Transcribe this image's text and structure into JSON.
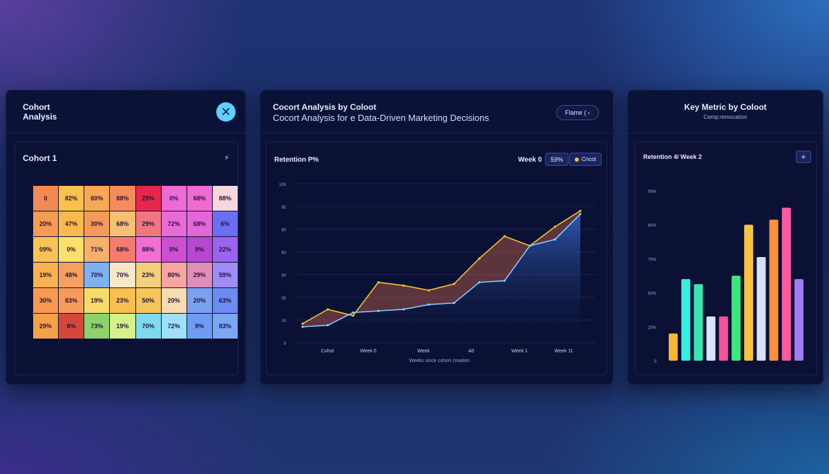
{
  "panel1": {
    "title": "Cohort Analysis",
    "card_title": "Cohort 1",
    "card_icon": "⚡",
    "close_icon": "✕",
    "heatmap": [
      [
        "0",
        "82%",
        "60%",
        "88%",
        "29%",
        "0%",
        "68%",
        "88%"
      ],
      [
        "20%",
        "47%",
        "30%",
        "68%",
        "29%",
        "72%",
        "68%",
        "6%"
      ],
      [
        "09%",
        "0%",
        "71%",
        "68%",
        "88%",
        "0%",
        "9%",
        "22%"
      ],
      [
        "19%",
        "48%",
        "70%",
        "70%",
        "23%",
        "80%",
        "29%",
        "59%"
      ],
      [
        "30%",
        "83%",
        "19%",
        "23%",
        "50%",
        "20%",
        "20%",
        "63%"
      ],
      [
        "29%",
        "8%",
        "73%",
        "19%",
        "70%",
        "72%",
        "9%",
        "83%"
      ]
    ],
    "heatmap_colors": [
      [
        "#f28a55",
        "#f9c04e",
        "#f7a856",
        "#f58c5c",
        "#e8254a",
        "#ee6bd6",
        "#ee6bd0",
        "#f8d6e0"
      ],
      [
        "#f79a52",
        "#f9b94d",
        "#f69a58",
        "#f5c170",
        "#f27680",
        "#e86bd8",
        "#e566d8",
        "#6b6ff0"
      ],
      [
        "#f9c354",
        "#fbe06c",
        "#f6b06a",
        "#f57a70",
        "#f070d2",
        "#cc4fcf",
        "#b548cf",
        "#9b64ee"
      ],
      [
        "#f9b24e",
        "#f59f60",
        "#7db1f0",
        "#f8e8c8",
        "#f5cf7a",
        "#f8a4a0",
        "#e38cb8",
        "#9f8cf5"
      ],
      [
        "#f89a4e",
        "#f79a5e",
        "#f7dc6a",
        "#f9c050",
        "#f3c65e",
        "#f6dcb0",
        "#7aa0f0",
        "#6b8cf0"
      ],
      [
        "#f4a24a",
        "#d4473a",
        "#8cd36a",
        "#d6f08a",
        "#7fdaf0",
        "#9ee0f8",
        "#6f9cf2",
        "#7aa8f2"
      ]
    ]
  },
  "panel2": {
    "title": "Cocort Analysis by Coloot",
    "subtitle": "Cocort Analysis for e Data-Driven Marketing Decisions",
    "filter_label": "Flame ( ‹",
    "card_title": "Retention P%",
    "week_label": "Week 0",
    "pct_chip": "59%",
    "cohort_chip": "Cncot"
  },
  "panel3": {
    "title": "Key Metric by Coloot",
    "subtitle": "Cemp:remocation",
    "card_title": "Retention 4/ Week 2",
    "add_label": "+"
  },
  "chart_data": [
    {
      "type": "area",
      "title": "Retention P%",
      "xlabel": "Weeks since cohort creation",
      "x_ticks": [
        "Cohot",
        "Week 0",
        "Week",
        "A0",
        "Week 1",
        "Week 11"
      ],
      "y_ticks": [
        "0",
        "10",
        "35",
        "50",
        "60",
        "80",
        "85",
        "100"
      ],
      "series": [
        {
          "color": "#f4c531",
          "values": [
            12,
            21,
            17,
            38,
            36,
            33,
            37,
            53,
            67,
            61,
            73,
            83
          ]
        },
        {
          "color": "#8cc8ff",
          "values": [
            10,
            11,
            19,
            20,
            21,
            24,
            25,
            38,
            39,
            61,
            65,
            81
          ]
        }
      ]
    },
    {
      "type": "bar",
      "title": "Retention 4/ Week 2",
      "y_ticks": [
        "0",
        "20%",
        "50%",
        "75%",
        "80%",
        "99%"
      ],
      "values": [
        16,
        48,
        45,
        26,
        26,
        50,
        80,
        61,
        83,
        90,
        48
      ],
      "colors": [
        "#f7b733",
        "#31f0e0",
        "#3ae6b0",
        "#d7e4ff",
        "#ff4f9a",
        "#38e87a",
        "#f9c240",
        "#d5e2ff",
        "#ff8f3a",
        "#ff5aa0",
        "#a07cf8"
      ]
    }
  ]
}
